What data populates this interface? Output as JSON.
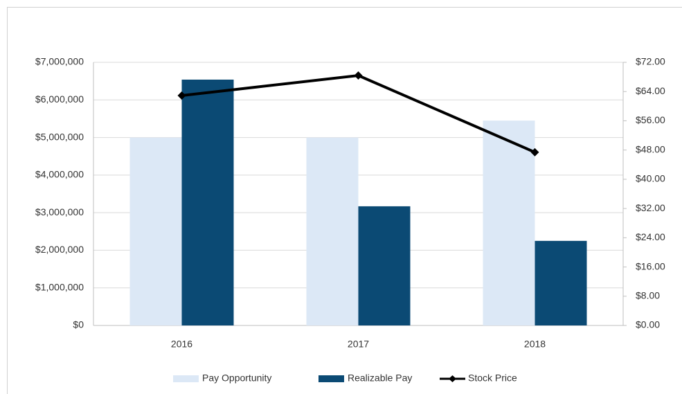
{
  "chart_data": {
    "type": "bar",
    "categories": [
      "2016",
      "2017",
      "2018"
    ],
    "series": [
      {
        "name": "Pay Opportunity",
        "color": "#dce8f6",
        "values": [
          5000000,
          5000000,
          5450000
        ]
      },
      {
        "name": "Realizable Pay",
        "color": "#0b4a74",
        "values": [
          6540000,
          3170000,
          2250000
        ]
      },
      {
        "name": "Stock Price",
        "type": "line",
        "axis": "y2",
        "color": "#000000",
        "values": [
          62.9,
          68.4,
          47.4
        ]
      }
    ],
    "ylim": [
      0,
      7000000
    ],
    "yticks": [
      {
        "value": 0,
        "label": "$0"
      },
      {
        "value": 1000000,
        "label": "$1,000,000"
      },
      {
        "value": 2000000,
        "label": "$2,000,000"
      },
      {
        "value": 3000000,
        "label": "$3,000,000"
      },
      {
        "value": 4000000,
        "label": "$4,000,000"
      },
      {
        "value": 5000000,
        "label": "$5,000,000"
      },
      {
        "value": 6000000,
        "label": "$6,000,000"
      },
      {
        "value": 7000000,
        "label": "$7,000,000"
      }
    ],
    "y2lim": [
      0,
      72
    ],
    "y2ticks": [
      {
        "value": 0,
        "label": "$0.00"
      },
      {
        "value": 8,
        "label": "$8.00"
      },
      {
        "value": 16,
        "label": "$16.00"
      },
      {
        "value": 24,
        "label": "$24.00"
      },
      {
        "value": 32,
        "label": "$32.00"
      },
      {
        "value": 40,
        "label": "$40.00"
      },
      {
        "value": 48,
        "label": "$48.00"
      },
      {
        "value": 56,
        "label": "$56.00"
      },
      {
        "value": 64,
        "label": "$64.00"
      },
      {
        "value": 72,
        "label": "$72.00"
      }
    ],
    "grid": true,
    "legend": "bottom"
  }
}
